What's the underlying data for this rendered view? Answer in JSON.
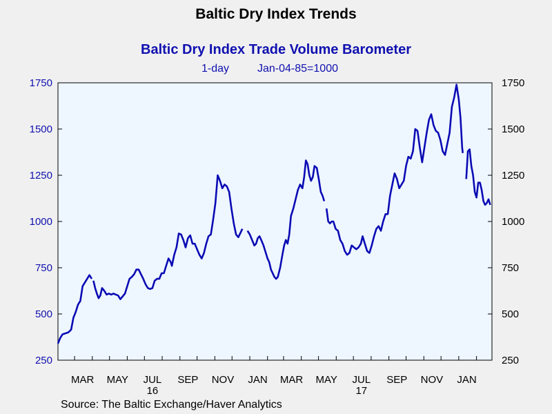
{
  "header": {
    "title": "Baltic Dry Index Trends",
    "subtitle": "Baltic Dry Index Trade Volume Barometer",
    "frequency": "1-day",
    "base": "Jan-04-85=1000"
  },
  "footer": {
    "source": "Source:  The Baltic Exchange/Haver Analytics"
  },
  "colors": {
    "series": "#0a0ab4",
    "plot_bg": "#eef6ff",
    "axis_text_left": "#1010b0",
    "axis_text_bottom": "#000000"
  },
  "chart_data": {
    "type": "line",
    "title": "Baltic Dry Index Trade Volume Barometer",
    "xlabel": "",
    "ylabel": "",
    "ylim": [
      250,
      1750
    ],
    "xlim": [
      "2016-02-01",
      "2018-02-28"
    ],
    "grid": false,
    "legend": "none",
    "yticks": [
      250,
      500,
      750,
      1000,
      1250,
      1500,
      1750
    ],
    "xtick_labels": [
      "MAR",
      "MAY",
      "JUL",
      "SEP",
      "NOV",
      "JAN",
      "MAR",
      "MAY",
      "JUL",
      "SEP",
      "NOV",
      "JAN"
    ],
    "year_labels": [
      {
        "label": "16",
        "under": "JUL"
      },
      {
        "label": "17",
        "under": "JUL"
      }
    ],
    "series": [
      {
        "x": [
          "2016-02-01",
          "2016-02-05",
          "2016-02-10",
          "2016-02-15",
          "2016-02-20",
          "2016-02-25",
          "2016-03-01",
          "2016-03-05",
          "2016-03-10",
          "2016-03-15",
          "2016-03-20",
          "2016-03-25",
          "2016-03-30",
          "2016-04-03",
          "2016-04-07",
          "2016-04-11",
          "2016-04-15",
          "2016-04-20",
          "2016-04-25",
          "2016-04-30",
          "2016-05-05",
          "2016-05-10",
          "2016-05-15",
          "2016-05-20",
          "2016-05-25",
          "2016-05-30",
          "2016-06-05",
          "2016-06-10",
          "2016-06-15",
          "2016-06-20",
          "2016-06-25",
          "2016-06-30",
          "2016-07-05",
          "2016-07-10",
          "2016-07-15",
          "2016-07-20",
          "2016-07-25",
          "2016-07-30",
          "2016-08-05",
          "2016-08-10",
          "2016-08-15",
          "2016-08-20",
          "2016-08-25",
          "2016-08-31",
          "2016-09-05",
          "2016-09-10",
          "2016-09-15",
          "2016-09-20",
          "2016-09-25",
          "2016-09-30",
          "2016-10-05",
          "2016-10-10",
          "2016-10-15",
          "2016-10-20",
          "2016-10-25",
          "2016-10-30",
          "2016-11-05",
          "2016-11-10",
          "2016-11-15",
          "2016-11-20",
          "2016-11-25",
          "2016-11-30",
          "2016-12-05",
          "2016-12-10",
          "2016-12-15",
          "2016-12-20",
          "2016-12-24"
        ],
        "y": [
          340,
          380,
          395,
          400,
          410,
          480,
          540,
          580,
          660,
          690,
          700,
          680,
          640,
          600,
          600,
          650,
          620,
          610,
          610,
          600,
          600,
          580,
          610,
          660,
          680,
          700,
          750,
          720,
          680,
          640,
          625,
          650,
          690,
          700,
          720,
          760,
          790,
          790,
          820,
          930,
          900,
          860,
          920,
          880,
          850,
          830,
          840,
          900,
          1020,
          1100,
          1250,
          1200,
          1180,
          1180,
          1150,
          1070,
          980,
          920,
          940,
          960,
          null,
          null,
          null,
          null,
          null,
          null,
          null
        ],
        "name": ""
      }
    ],
    "points": [
      [
        "2016-02-01",
        340
      ],
      [
        "2016-02-05",
        370
      ],
      [
        "2016-02-09",
        390
      ],
      [
        "2016-02-14",
        395
      ],
      [
        "2016-02-19",
        400
      ],
      [
        "2016-02-24",
        415
      ],
      [
        "2016-02-28",
        480
      ],
      [
        "2016-03-03",
        510
      ],
      [
        "2016-03-07",
        550
      ],
      [
        "2016-03-11",
        570
      ],
      [
        "2016-03-15",
        650
      ],
      [
        "2016-03-19",
        670
      ],
      [
        "2016-03-23",
        690
      ],
      [
        "2016-03-27",
        710
      ],
      [
        "2016-03-31",
        690
      ],
      [
        "2016-04-02",
        null
      ],
      [
        "2016-04-03",
        680
      ],
      [
        "2016-04-06",
        640
      ],
      [
        "2016-04-09",
        610
      ],
      [
        "2016-04-12",
        585
      ],
      [
        "2016-04-15",
        600
      ],
      [
        "2016-04-18",
        640
      ],
      [
        "2016-04-22",
        625
      ],
      [
        "2016-04-26",
        605
      ],
      [
        "2016-04-30",
        610
      ],
      [
        "2016-05-04",
        605
      ],
      [
        "2016-05-08",
        610
      ],
      [
        "2016-05-12",
        605
      ],
      [
        "2016-05-16",
        600
      ],
      [
        "2016-05-20",
        580
      ],
      [
        "2016-05-24",
        595
      ],
      [
        "2016-05-28",
        610
      ],
      [
        "2016-06-01",
        650
      ],
      [
        "2016-06-05",
        690
      ],
      [
        "2016-06-09",
        700
      ],
      [
        "2016-06-13",
        715
      ],
      [
        "2016-06-17",
        740
      ],
      [
        "2016-06-21",
        740
      ],
      [
        "2016-06-25",
        715
      ],
      [
        "2016-06-29",
        690
      ],
      [
        "2016-07-03",
        660
      ],
      [
        "2016-07-07",
        640
      ],
      [
        "2016-07-11",
        635
      ],
      [
        "2016-07-15",
        640
      ],
      [
        "2016-07-19",
        680
      ],
      [
        "2016-07-23",
        690
      ],
      [
        "2016-07-27",
        690
      ],
      [
        "2016-07-31",
        720
      ],
      [
        "2016-08-04",
        720
      ],
      [
        "2016-08-08",
        760
      ],
      [
        "2016-08-12",
        800
      ],
      [
        "2016-08-16",
        780
      ],
      [
        "2016-08-18",
        760
      ],
      [
        "2016-08-22",
        820
      ],
      [
        "2016-08-26",
        860
      ],
      [
        "2016-08-30",
        935
      ],
      [
        "2016-09-03",
        930
      ],
      [
        "2016-09-07",
        900
      ],
      [
        "2016-09-11",
        860
      ],
      [
        "2016-09-15",
        910
      ],
      [
        "2016-09-19",
        925
      ],
      [
        "2016-09-23",
        880
      ],
      [
        "2016-09-27",
        880
      ],
      [
        "2016-10-01",
        850
      ],
      [
        "2016-10-05",
        820
      ],
      [
        "2016-10-09",
        800
      ],
      [
        "2016-10-13",
        830
      ],
      [
        "2016-10-17",
        880
      ],
      [
        "2016-10-21",
        920
      ],
      [
        "2016-10-25",
        930
      ],
      [
        "2016-10-29",
        1010
      ],
      [
        "2016-11-02",
        1100
      ],
      [
        "2016-11-06",
        1250
      ],
      [
        "2016-11-10",
        1220
      ],
      [
        "2016-11-14",
        1180
      ],
      [
        "2016-11-18",
        1200
      ],
      [
        "2016-11-22",
        1190
      ],
      [
        "2016-11-26",
        1160
      ],
      [
        "2016-11-30",
        1070
      ],
      [
        "2016-12-04",
        990
      ],
      [
        "2016-12-08",
        930
      ],
      [
        "2016-12-12",
        915
      ],
      [
        "2016-12-16",
        940
      ],
      [
        "2016-12-19",
        960
      ],
      [
        "2016-12-20",
        null
      ],
      [
        "2016-12-28",
        950
      ],
      [
        "2017-01-01",
        930
      ],
      [
        "2017-01-05",
        900
      ],
      [
        "2017-01-09",
        870
      ],
      [
        "2017-01-12",
        880
      ],
      [
        "2017-01-15",
        910
      ],
      [
        "2017-01-18",
        920
      ],
      [
        "2017-01-21",
        900
      ],
      [
        "2017-01-25",
        870
      ],
      [
        "2017-01-28",
        840
      ],
      [
        "2017-02-01",
        800
      ],
      [
        "2017-02-04",
        780
      ],
      [
        "2017-02-07",
        740
      ],
      [
        "2017-02-10",
        720
      ],
      [
        "2017-02-13",
        700
      ],
      [
        "2017-02-16",
        690
      ],
      [
        "2017-02-19",
        700
      ],
      [
        "2017-02-23",
        750
      ],
      [
        "2017-02-27",
        820
      ],
      [
        "2017-03-02",
        870
      ],
      [
        "2017-03-05",
        900
      ],
      [
        "2017-03-08",
        880
      ],
      [
        "2017-03-11",
        930
      ],
      [
        "2017-03-14",
        1030
      ],
      [
        "2017-03-18",
        1070
      ],
      [
        "2017-03-22",
        1120
      ],
      [
        "2017-03-26",
        1170
      ],
      [
        "2017-03-30",
        1200
      ],
      [
        "2017-04-03",
        1180
      ],
      [
        "2017-04-06",
        1240
      ],
      [
        "2017-04-09",
        1330
      ],
      [
        "2017-04-12",
        1310
      ],
      [
        "2017-04-15",
        1250
      ],
      [
        "2017-04-18",
        1220
      ],
      [
        "2017-04-21",
        1240
      ],
      [
        "2017-04-24",
        1300
      ],
      [
        "2017-04-28",
        1290
      ],
      [
        "2017-05-02",
        1220
      ],
      [
        "2017-05-05",
        1160
      ],
      [
        "2017-05-08",
        1140
      ],
      [
        "2017-05-11",
        1110
      ],
      [
        "2017-05-12",
        null
      ],
      [
        "2017-05-15",
        1070
      ],
      [
        "2017-05-18",
        1000
      ],
      [
        "2017-05-21",
        990
      ],
      [
        "2017-05-24",
        1000
      ],
      [
        "2017-05-27",
        1000
      ],
      [
        "2017-05-31",
        960
      ],
      [
        "2017-06-04",
        950
      ],
      [
        "2017-06-08",
        900
      ],
      [
        "2017-06-12",
        880
      ],
      [
        "2017-06-16",
        840
      ],
      [
        "2017-06-20",
        820
      ],
      [
        "2017-06-24",
        830
      ],
      [
        "2017-06-28",
        870
      ],
      [
        "2017-07-02",
        860
      ],
      [
        "2017-07-06",
        850
      ],
      [
        "2017-07-10",
        860
      ],
      [
        "2017-07-14",
        880
      ],
      [
        "2017-07-17",
        920
      ],
      [
        "2017-07-21",
        880
      ],
      [
        "2017-07-25",
        840
      ],
      [
        "2017-07-29",
        830
      ],
      [
        "2017-08-02",
        870
      ],
      [
        "2017-08-06",
        920
      ],
      [
        "2017-08-10",
        960
      ],
      [
        "2017-08-14",
        975
      ],
      [
        "2017-08-18",
        950
      ],
      [
        "2017-08-22",
        1000
      ],
      [
        "2017-08-26",
        1040
      ],
      [
        "2017-08-30",
        1040
      ],
      [
        "2017-09-03",
        1140
      ],
      [
        "2017-09-07",
        1200
      ],
      [
        "2017-09-11",
        1260
      ],
      [
        "2017-09-15",
        1230
      ],
      [
        "2017-09-19",
        1180
      ],
      [
        "2017-09-23",
        1200
      ],
      [
        "2017-09-27",
        1220
      ],
      [
        "2017-10-01",
        1300
      ],
      [
        "2017-10-05",
        1350
      ],
      [
        "2017-10-09",
        1340
      ],
      [
        "2017-10-13",
        1380
      ],
      [
        "2017-10-17",
        1500
      ],
      [
        "2017-10-21",
        1490
      ],
      [
        "2017-10-25",
        1400
      ],
      [
        "2017-10-29",
        1320
      ],
      [
        "2017-11-02",
        1400
      ],
      [
        "2017-11-06",
        1480
      ],
      [
        "2017-11-10",
        1550
      ],
      [
        "2017-11-14",
        1580
      ],
      [
        "2017-11-18",
        1520
      ],
      [
        "2017-11-22",
        1490
      ],
      [
        "2017-11-26",
        1480
      ],
      [
        "2017-11-30",
        1440
      ],
      [
        "2017-12-04",
        1380
      ],
      [
        "2017-12-08",
        1360
      ],
      [
        "2017-12-12",
        1420
      ],
      [
        "2017-12-16",
        1480
      ],
      [
        "2017-12-20",
        1620
      ],
      [
        "2017-12-24",
        1670
      ],
      [
        "2017-12-28",
        1740
      ],
      [
        "2018-01-01",
        1660
      ],
      [
        "2018-01-04",
        1560
      ],
      [
        "2018-01-07",
        1400
      ],
      [
        "2018-01-08",
        1370
      ],
      [
        "2018-01-10",
        null
      ],
      [
        "2018-01-14",
        1230
      ],
      [
        "2018-01-17",
        1380
      ],
      [
        "2018-01-20",
        1390
      ],
      [
        "2018-01-23",
        1300
      ],
      [
        "2018-01-26",
        1250
      ],
      [
        "2018-01-29",
        1160
      ],
      [
        "2018-02-01",
        1130
      ],
      [
        "2018-02-04",
        1210
      ],
      [
        "2018-02-07",
        1210
      ],
      [
        "2018-02-10",
        1170
      ],
      [
        "2018-02-13",
        1110
      ],
      [
        "2018-02-16",
        1090
      ],
      [
        "2018-02-19",
        1100
      ],
      [
        "2018-02-22",
        1120
      ],
      [
        "2018-02-25",
        1090
      ]
    ]
  }
}
